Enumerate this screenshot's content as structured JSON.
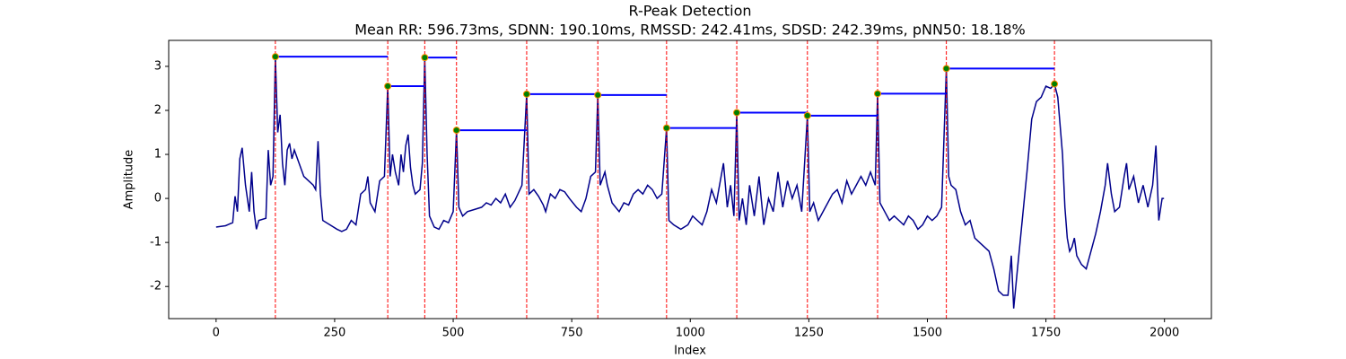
{
  "chart_data": {
    "type": "line",
    "title": "R-Peak Detection",
    "subtitle": "Mean RR: 596.73ms, SDNN: 190.10ms, RMSSD: 242.41ms, SDSD: 242.39ms, pNN50: 18.18%",
    "x_label": "Index",
    "y_label": "Amplitude",
    "xlim": [
      -99.95,
      2098.95
    ],
    "ylim": [
      -2.73,
      3.59
    ],
    "xticks": [
      0,
      250,
      500,
      750,
      1000,
      1250,
      1500,
      1750,
      2000
    ],
    "yticks": [
      -2,
      -1,
      0,
      1,
      2,
      3
    ],
    "series": [
      {
        "color": "#00008b",
        "x": [
          0,
          20,
          35,
          40,
          45,
          50,
          55,
          62,
          70,
          75,
          80,
          85,
          90,
          105,
          110,
          115,
          120,
          125,
          130,
          135,
          140,
          145,
          150,
          155,
          160,
          165,
          175,
          185,
          195,
          205,
          210,
          215,
          220,
          225,
          240,
          255,
          265,
          275,
          285,
          295,
          305,
          315,
          320,
          325,
          335,
          345,
          355,
          362,
          367,
          372,
          378,
          385,
          390,
          395,
          400,
          405,
          410,
          415,
          420,
          430,
          435,
          440,
          445,
          450,
          460,
          470,
          480,
          490,
          500,
          507,
          512,
          520,
          530,
          545,
          560,
          570,
          580,
          590,
          600,
          610,
          620,
          630,
          645,
          655,
          660,
          670,
          680,
          690,
          695,
          705,
          715,
          725,
          735,
          745,
          760,
          770,
          780,
          790,
          800,
          805,
          810,
          820,
          825,
          835,
          850,
          860,
          870,
          880,
          890,
          900,
          910,
          920,
          930,
          940,
          950,
          955,
          965,
          980,
          995,
          1005,
          1015,
          1025,
          1035,
          1045,
          1055,
          1065,
          1070,
          1078,
          1085,
          1092,
          1098,
          1103,
          1110,
          1118,
          1125,
          1135,
          1145,
          1155,
          1165,
          1175,
          1185,
          1195,
          1205,
          1215,
          1225,
          1235,
          1247,
          1252,
          1260,
          1270,
          1285,
          1300,
          1310,
          1320,
          1330,
          1340,
          1350,
          1360,
          1370,
          1380,
          1390,
          1395,
          1400,
          1410,
          1420,
          1430,
          1440,
          1450,
          1460,
          1470,
          1480,
          1490,
          1500,
          1510,
          1520,
          1530,
          1540,
          1545,
          1550,
          1560,
          1570,
          1580,
          1590,
          1600,
          1610,
          1620,
          1630,
          1640,
          1650,
          1660,
          1670,
          1677,
          1682,
          1690,
          1700,
          1710,
          1720,
          1730,
          1740,
          1750,
          1760,
          1768,
          1775,
          1785,
          1790,
          1795,
          1800,
          1805,
          1810,
          1815,
          1825,
          1835,
          1845,
          1855,
          1865,
          1875,
          1880,
          1888,
          1895,
          1905,
          1915,
          1920,
          1925,
          1935,
          1945,
          1955,
          1965,
          1975,
          1982,
          1988,
          1995,
          1999
        ],
        "values": [
          -0.65,
          -0.62,
          -0.55,
          0.05,
          -0.3,
          0.9,
          1.15,
          0.3,
          -0.3,
          0.6,
          -0.3,
          -0.7,
          -0.5,
          -0.45,
          1.1,
          0.3,
          0.5,
          3.22,
          1.5,
          1.9,
          0.8,
          0.3,
          1.1,
          1.25,
          0.9,
          1.1,
          0.8,
          0.5,
          0.4,
          0.3,
          0.2,
          1.3,
          0.1,
          -0.5,
          -0.6,
          -0.7,
          -0.75,
          -0.7,
          -0.5,
          -0.6,
          0.1,
          0.2,
          0.5,
          -0.1,
          -0.3,
          0.4,
          0.5,
          2.55,
          0.5,
          1.0,
          0.6,
          0.3,
          1.0,
          0.6,
          1.2,
          1.45,
          0.7,
          0.3,
          0.1,
          0.2,
          0.8,
          3.2,
          1.0,
          -0.4,
          -0.65,
          -0.7,
          -0.5,
          -0.55,
          -0.3,
          1.55,
          -0.2,
          -0.4,
          -0.3,
          -0.25,
          -0.2,
          -0.1,
          -0.15,
          0.0,
          -0.1,
          0.1,
          -0.2,
          -0.05,
          0.3,
          2.37,
          0.1,
          0.2,
          0.05,
          -0.15,
          -0.3,
          0.1,
          0.0,
          0.2,
          0.15,
          0.0,
          -0.2,
          -0.3,
          0.0,
          0.5,
          0.6,
          2.35,
          0.3,
          0.6,
          0.3,
          -0.1,
          -0.3,
          -0.1,
          -0.15,
          0.1,
          0.2,
          0.1,
          0.3,
          0.2,
          0.0,
          0.1,
          1.6,
          -0.5,
          -0.6,
          -0.7,
          -0.6,
          -0.4,
          -0.5,
          -0.6,
          -0.3,
          0.2,
          -0.1,
          0.5,
          0.8,
          -0.2,
          0.3,
          -0.4,
          1.95,
          -0.5,
          0.0,
          -0.6,
          0.3,
          -0.4,
          0.5,
          -0.6,
          0.0,
          -0.3,
          0.6,
          -0.2,
          0.4,
          0.0,
          0.3,
          -0.3,
          1.88,
          -0.3,
          -0.1,
          -0.5,
          -0.2,
          0.1,
          0.2,
          -0.1,
          0.4,
          0.1,
          0.3,
          0.5,
          0.3,
          0.6,
          0.3,
          2.38,
          -0.1,
          -0.3,
          -0.5,
          -0.4,
          -0.5,
          -0.6,
          -0.4,
          -0.5,
          -0.7,
          -0.6,
          -0.4,
          -0.5,
          -0.4,
          -0.2,
          2.95,
          0.5,
          0.3,
          0.2,
          -0.3,
          -0.6,
          -0.5,
          -0.9,
          -1.0,
          -1.1,
          -1.2,
          -1.6,
          -2.1,
          -2.2,
          -2.2,
          -1.3,
          -2.5,
          -1.6,
          -0.5,
          0.6,
          1.8,
          2.2,
          2.3,
          2.55,
          2.5,
          2.6,
          2.3,
          1.0,
          -0.2,
          -0.9,
          -1.2,
          -1.1,
          -0.9,
          -1.3,
          -1.5,
          -1.6,
          -1.2,
          -0.8,
          -0.3,
          0.3,
          0.8,
          0.1,
          -0.3,
          -0.2,
          0.5,
          0.8,
          0.2,
          0.5,
          -0.1,
          0.3,
          -0.2,
          0.3,
          1.2,
          -0.5,
          0.0,
          0.0
        ]
      }
    ],
    "peaks": {
      "color": "green",
      "edge_color": "#ff8c00",
      "line_color": "red",
      "interval_color": "blue",
      "x": [
        125,
        362,
        440,
        507,
        655,
        805,
        950,
        1098,
        1247,
        1395,
        1540,
        1768
      ],
      "values": [
        3.22,
        2.55,
        3.2,
        1.55,
        2.37,
        2.35,
        1.6,
        1.95,
        1.88,
        2.38,
        2.95,
        2.6
      ]
    }
  }
}
